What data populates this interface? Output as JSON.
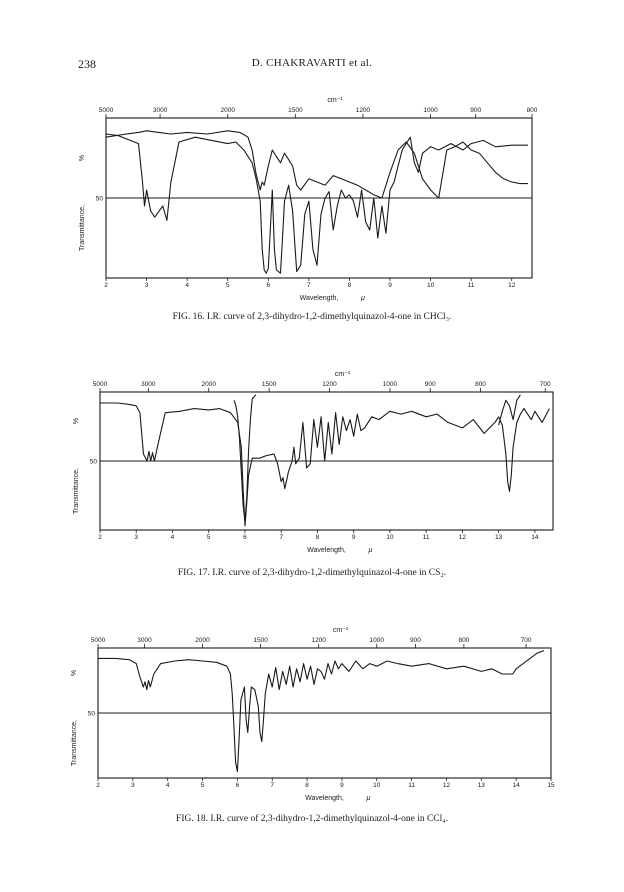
{
  "header": {
    "page_number": "238",
    "running_head": "D. CHAKRAVARTI et al."
  },
  "figures": [
    {
      "id": "fig16",
      "caption": "FIG. 16. I.R. curve of 2,3-dihydro-1,2-dimethylquinazol-4-one in CHCl₃.",
      "chart_data": {
        "type": "line",
        "title": "",
        "top_axis_label": "cm⁻¹",
        "top_ticks": [
          "5000",
          "3000",
          "2000",
          "1500",
          "1200",
          "1000",
          "900",
          "800"
        ],
        "top_tick_values": [
          5000,
          3000,
          2000,
          1500,
          1200,
          1000,
          900,
          800
        ],
        "xlabel": "Wavelength,",
        "xunit": "μ",
        "ylabel": "Transmittance,",
        "yunit": "%",
        "y_ref_label": "50",
        "y_ref_value": 50,
        "xlim": [
          2,
          12.5
        ],
        "ylim": [
          0,
          100
        ],
        "x_ticks": [
          "2",
          "3",
          "4",
          "5",
          "6",
          "7",
          "8",
          "9",
          "10",
          "11",
          "12"
        ],
        "x_tick_values": [
          2,
          3,
          4,
          5,
          6,
          7,
          8,
          9,
          10,
          11,
          12
        ],
        "series": [
          {
            "x": [
              2.0,
              2.3,
              2.6,
              2.8,
              2.9,
              2.95,
              3.0,
              3.1,
              3.2,
              3.4,
              3.5,
              3.6,
              3.8,
              4.2,
              4.6,
              5.0,
              5.2,
              5.4,
              5.6,
              5.7,
              5.8,
              5.85,
              5.9,
              5.95,
              6.0,
              6.05,
              6.1,
              6.15,
              6.2,
              6.3,
              6.35,
              6.4,
              6.5,
              6.6,
              6.7,
              6.8,
              6.9,
              7.0,
              7.1,
              7.2,
              7.3,
              7.4,
              7.5,
              7.6,
              7.7,
              7.8,
              7.9,
              8.0,
              8.1,
              8.2,
              8.3,
              8.4,
              8.5,
              8.6,
              8.7,
              8.8,
              8.9,
              9.0,
              9.1,
              9.2,
              9.3,
              9.4,
              9.5,
              9.6,
              9.7,
              9.8,
              10.0,
              10.2,
              10.5,
              10.8,
              11.0,
              11.3,
              11.6,
              12.0,
              12.4
            ],
            "y": [
              90,
              89,
              86,
              84,
              60,
              45,
              55,
              42,
              38,
              45,
              36,
              60,
              85,
              88,
              86,
              84,
              85,
              80,
              72,
              62,
              48,
              18,
              5,
              3,
              6,
              30,
              55,
              18,
              5,
              3,
              25,
              48,
              58,
              42,
              4,
              8,
              40,
              48,
              18,
              8,
              40,
              50,
              54,
              30,
              45,
              55,
              50,
              52,
              48,
              38,
              55,
              35,
              30,
              50,
              25,
              45,
              28,
              55,
              60,
              70,
              80,
              84,
              88,
              72,
              66,
              78,
              82,
              80,
              84,
              80,
              84,
              86,
              82,
              83,
              83
            ]
          },
          {
            "x": [
              2.0,
              2.5,
              2.8,
              3.0,
              3.3,
              3.6,
              4.0,
              4.5,
              5.0,
              5.3,
              5.5,
              5.6,
              5.7,
              5.8,
              5.85,
              5.9,
              6.0,
              6.1,
              6.2,
              6.3,
              6.4,
              6.5,
              6.6,
              6.7,
              6.8,
              7.0,
              7.2,
              7.4,
              7.6,
              7.8,
              8.0,
              8.2,
              8.4,
              8.6,
              8.8,
              9.0,
              9.2,
              9.4,
              9.6,
              9.8,
              10.0,
              10.2,
              10.4,
              10.6,
              10.8,
              11.0,
              11.2,
              11.4,
              11.6,
              11.8,
              12.0,
              12.2,
              12.4
            ],
            "y": [
              88,
              90,
              91,
              92,
              91,
              90,
              91,
              90,
              92,
              91,
              88,
              80,
              65,
              55,
              60,
              58,
              70,
              80,
              76,
              72,
              78,
              74,
              70,
              58,
              55,
              62,
              60,
              58,
              64,
              62,
              60,
              58,
              55,
              52,
              50,
              66,
              80,
              85,
              78,
              62,
              55,
              50,
              80,
              82,
              85,
              80,
              78,
              72,
              66,
              62,
              60,
              59,
              59
            ]
          }
        ]
      }
    },
    {
      "id": "fig17",
      "caption": "FIG. 17. I.R. curve of 2,3-dihydro-1,2-dimethylquinazol-4-one in CS₂.",
      "chart_data": {
        "type": "line",
        "title": "",
        "top_axis_label": "cm⁻¹",
        "top_ticks": [
          "5000",
          "3000",
          "2000",
          "1500",
          "1200",
          "1000",
          "900",
          "800",
          "700"
        ],
        "top_tick_values": [
          5000,
          3000,
          2000,
          1500,
          1200,
          1000,
          900,
          800,
          700
        ],
        "xlabel": "Wavelength,",
        "xunit": "μ",
        "ylabel": "Transmittance,",
        "yunit": "%",
        "y_ref_label": "50",
        "y_ref_value": 50,
        "xlim": [
          2,
          14.5
        ],
        "ylim": [
          0,
          100
        ],
        "x_ticks": [
          "2",
          "3",
          "4",
          "5",
          "6",
          "7",
          "8",
          "9",
          "10",
          "11",
          "12",
          "13",
          "14"
        ],
        "x_tick_values": [
          2,
          3,
          4,
          5,
          6,
          7,
          8,
          9,
          10,
          11,
          12,
          13,
          14
        ],
        "series": [
          {
            "x": [
              2.0,
              2.5,
              2.8,
              3.0,
              3.1,
              3.2,
              3.3,
              3.35,
              3.4,
              3.45,
              3.5,
              3.6,
              3.8,
              4.2,
              4.6,
              5.0,
              5.3,
              5.6,
              5.8,
              5.9,
              5.95,
              6.0,
              6.05,
              6.1,
              6.2,
              6.4,
              6.6,
              6.8,
              6.9,
              7.0,
              7.05,
              7.1,
              7.2,
              7.3,
              7.35,
              7.4,
              7.5,
              7.6,
              7.7,
              7.8,
              7.9,
              8.0,
              8.1,
              8.2,
              8.3,
              8.4,
              8.5,
              8.6,
              8.7,
              8.8,
              8.9,
              9.0,
              9.1,
              9.2,
              9.3,
              9.5,
              9.7,
              10.0,
              10.3,
              10.6,
              11.0,
              11.3,
              11.6,
              12.0,
              12.3,
              12.6,
              12.9,
              13.0,
              13.1,
              13.2,
              13.25,
              13.3,
              13.35,
              13.4,
              13.5,
              13.6,
              13.7,
              13.8,
              13.9,
              14.0,
              14.2,
              14.4
            ],
            "y": [
              92,
              92,
              91,
              90,
              85,
              55,
              50,
              57,
              50,
              56,
              50,
              62,
              85,
              86,
              88,
              87,
              88,
              85,
              78,
              60,
              30,
              3,
              20,
              40,
              52,
              52,
              54,
              55,
              48,
              35,
              38,
              30,
              42,
              50,
              60,
              48,
              52,
              78,
              45,
              48,
              80,
              60,
              82,
              50,
              78,
              55,
              85,
              62,
              82,
              72,
              80,
              68,
              84,
              72,
              74,
              82,
              80,
              86,
              84,
              86,
              82,
              84,
              78,
              74,
              80,
              70,
              78,
              82,
              76,
              55,
              35,
              28,
              40,
              60,
              78,
              84,
              88,
              84,
              80,
              86,
              78,
              88
            ]
          },
          {
            "x": [
              5.7,
              5.75,
              5.8,
              5.85,
              5.9,
              5.95,
              6.0,
              6.05,
              6.1,
              6.15,
              6.2,
              6.3
            ],
            "y": [
              94,
              90,
              82,
              66,
              42,
              18,
              6,
              24,
              58,
              80,
              95,
              98
            ]
          },
          {
            "x": [
              13.0,
              13.1,
              13.2,
              13.3,
              13.4,
              13.5,
              13.6
            ],
            "y": [
              76,
              86,
              94,
              90,
              80,
              94,
              98
            ]
          }
        ]
      }
    },
    {
      "id": "fig18",
      "caption": "FIG. 18. I.R. curve of 2,3-dihydro-1,2-dimethylquinazol-4-one in CCl₄.",
      "chart_data": {
        "type": "line",
        "title": "",
        "top_axis_label": "cm⁻¹",
        "top_ticks": [
          "5000",
          "3000",
          "2000",
          "1500",
          "1200",
          "1000",
          "900",
          "800",
          "700"
        ],
        "top_tick_values": [
          5000,
          3000,
          2000,
          1500,
          1200,
          1000,
          900,
          800,
          700
        ],
        "xlabel": "Wavelength,",
        "xunit": "μ",
        "ylabel": "Transmittance,",
        "yunit": "%",
        "y_ref_label": "50",
        "y_ref_value": 50,
        "xlim": [
          2,
          15
        ],
        "ylim": [
          0,
          100
        ],
        "x_ticks": [
          "2",
          "3",
          "4",
          "5",
          "6",
          "7",
          "8",
          "9",
          "10",
          "11",
          "12",
          "13",
          "14",
          "15"
        ],
        "x_tick_values": [
          2,
          3,
          4,
          5,
          6,
          7,
          8,
          9,
          10,
          11,
          12,
          13,
          14,
          15
        ],
        "series": [
          {
            "x": [
              2.0,
              2.5,
              2.9,
              3.1,
              3.2,
              3.3,
              3.35,
              3.4,
              3.45,
              3.5,
              3.6,
              3.8,
              4.2,
              4.6,
              5.0,
              5.4,
              5.7,
              5.8,
              5.85,
              5.9,
              5.95,
              6.0,
              6.05,
              6.1,
              6.2,
              6.25,
              6.3,
              6.35,
              6.4,
              6.5,
              6.6,
              6.65,
              6.7,
              6.75,
              6.8,
              6.9,
              7.0,
              7.1,
              7.2,
              7.3,
              7.4,
              7.5,
              7.6,
              7.7,
              7.8,
              7.9,
              8.0,
              8.1,
              8.2,
              8.3,
              8.4,
              8.5,
              8.6,
              8.7,
              8.8,
              8.9,
              9.0,
              9.2,
              9.4,
              9.6,
              9.8,
              10.0,
              10.3,
              10.6,
              11.0,
              11.5,
              12.0,
              12.5,
              13.0,
              13.3,
              13.6,
              13.9,
              14.0,
              14.2,
              14.4,
              14.6,
              14.8
            ],
            "y": [
              92,
              92,
              91,
              88,
              78,
              70,
              74,
              68,
              75,
              70,
              80,
              88,
              90,
              91,
              90,
              89,
              86,
              80,
              65,
              40,
              12,
              5,
              30,
              60,
              70,
              45,
              35,
              55,
              70,
              68,
              55,
              35,
              28,
              45,
              65,
              80,
              70,
              85,
              68,
              82,
              72,
              86,
              70,
              84,
              74,
              88,
              76,
              86,
              72,
              84,
              82,
              76,
              88,
              80,
              90,
              84,
              88,
              82,
              90,
              84,
              88,
              86,
              90,
              88,
              86,
              88,
              84,
              86,
              82,
              84,
              80,
              80,
              84,
              88,
              92,
              96,
              98
            ]
          }
        ]
      }
    }
  ]
}
